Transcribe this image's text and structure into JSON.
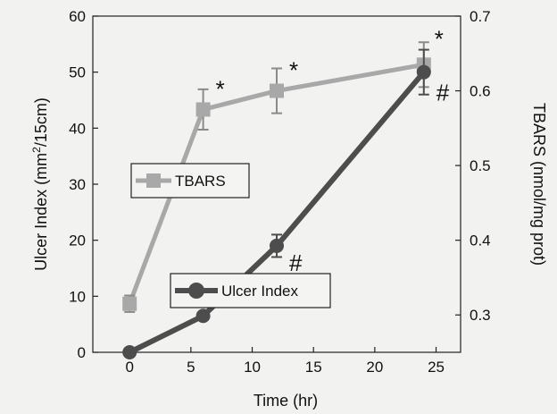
{
  "chart_data": {
    "type": "line",
    "x": [
      0,
      6,
      12,
      24
    ],
    "xlabel": "Time (hr)",
    "xlim": [
      -3,
      27
    ],
    "xticks": [
      "0",
      "5",
      "10",
      "15",
      "20",
      "25"
    ],
    "xtick_values": [
      0,
      5,
      10,
      15,
      20,
      25
    ],
    "y_left": {
      "label_main": "Ulcer Index (mm",
      "label_sup": "2",
      "label_tail": "/15cm)",
      "ylim": [
        0,
        60
      ],
      "ticks": [
        "0",
        "10",
        "20",
        "30",
        "40",
        "50",
        "60"
      ],
      "tick_values": [
        0,
        10,
        20,
        30,
        40,
        50,
        60
      ]
    },
    "y_right": {
      "label": "TBARS (nmol/mg prot)",
      "ylim": [
        0.25,
        0.7
      ],
      "ticks": [
        "0.3",
        "0.4",
        "0.5",
        "0.6",
        "0.7"
      ],
      "tick_values": [
        0.3,
        0.4,
        0.5,
        0.6,
        0.7
      ]
    },
    "series": [
      {
        "name": "TBARS",
        "axis": "right",
        "marker": "square",
        "color": "#a8a8a8",
        "values": [
          0.315,
          0.575,
          0.6,
          0.635
        ],
        "errors": [
          0.011,
          0.027,
          0.03,
          0.03
        ],
        "annotations": [
          "",
          "*",
          "*",
          "*"
        ]
      },
      {
        "name": "Ulcer Index",
        "axis": "left",
        "marker": "circle",
        "color": "#4d4d4d",
        "values": [
          0,
          6.5,
          19,
          50
        ],
        "errors": [
          0,
          0,
          2,
          4
        ],
        "annotations": [
          "",
          "",
          "#",
          "#"
        ]
      }
    ],
    "legend_placement": "inside"
  }
}
